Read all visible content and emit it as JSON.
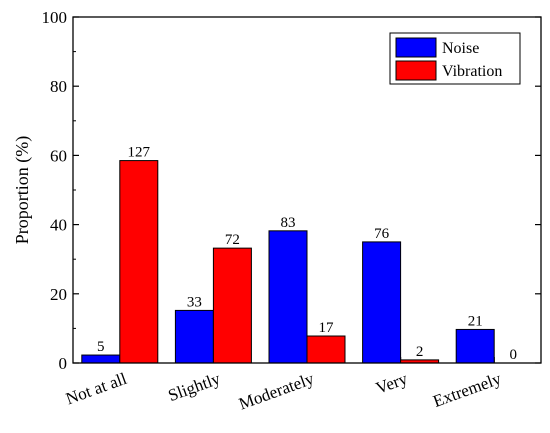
{
  "chart_data": {
    "type": "bar",
    "ylabel": "Proportion (%)",
    "xlabel": "",
    "ylim": [
      0,
      100
    ],
    "yticks": [
      "0",
      "20",
      "40",
      "60",
      "80",
      "100"
    ],
    "categories": [
      "Not at all",
      "Slightly",
      "Moderately",
      "Very",
      "Extremely"
    ],
    "series": [
      {
        "name": "Noise",
        "color": "#0000ff",
        "values": [
          2.3,
          15.2,
          38.2,
          35.0,
          9.7
        ],
        "labels": [
          "5",
          "33",
          "83",
          "76",
          "21"
        ]
      },
      {
        "name": "Vibration",
        "color": "#ff0000",
        "values": [
          58.5,
          33.2,
          7.8,
          0.9,
          0.0
        ],
        "labels": [
          "127",
          "72",
          "17",
          "2",
          "0"
        ]
      }
    ],
    "legend": "top-right",
    "grid": false
  }
}
